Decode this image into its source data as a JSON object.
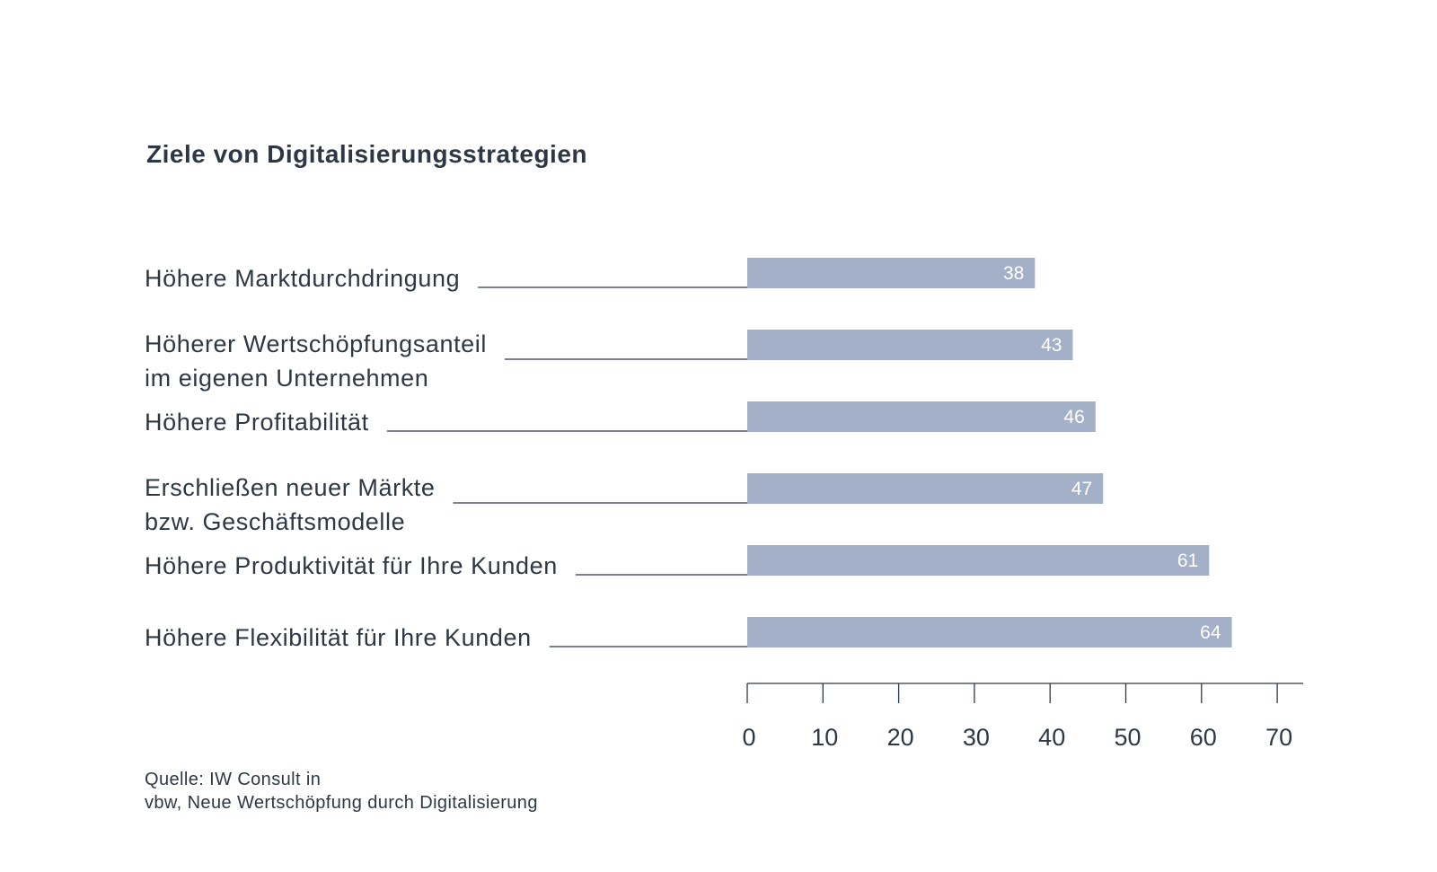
{
  "chart_data": {
    "type": "bar",
    "orientation": "horizontal",
    "title": "Ziele von Digitalisierungsstrategien",
    "categories": [
      [
        "Höhere Marktdurchdringung"
      ],
      [
        "Höherer Wertschöpfungsanteil",
        "im eigenen Unternehmen"
      ],
      [
        "Höhere Profitabilität"
      ],
      [
        "Erschließen neuer Märkte",
        "bzw. Geschäftsmodelle"
      ],
      [
        "Höhere Produktivität für Ihre Kunden"
      ],
      [
        "Höhere Flexibilität für Ihre Kunden"
      ]
    ],
    "values": [
      38,
      43,
      46,
      47,
      61,
      64
    ],
    "data_labels": [
      "38",
      "43",
      "46",
      "47",
      "61",
      "64"
    ],
    "xlim": [
      0,
      70
    ],
    "x_ticks": [
      0,
      10,
      20,
      30,
      40,
      50,
      60,
      70
    ],
    "x_tick_labels": [
      "0",
      "10",
      "20",
      "30",
      "40",
      "50",
      "60",
      "70"
    ],
    "xlabel": "",
    "ylabel": "",
    "grid": false,
    "legend": "none",
    "colors": {
      "bar": "#a4afc8",
      "text": "#2e3844",
      "leader_line": "#2e3844",
      "axis": "#2e3844",
      "value_label": "#ffffff"
    }
  },
  "source": {
    "lines": [
      "Quelle: IW Consult in",
      "vbw, Neue Wertschöpfung durch Digitalisierung"
    ]
  }
}
